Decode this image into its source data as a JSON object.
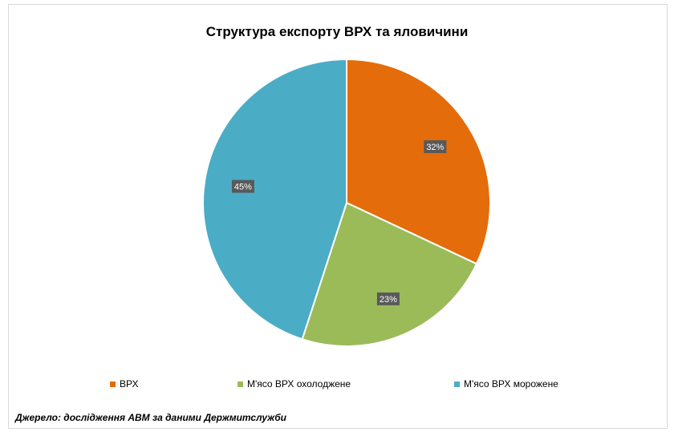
{
  "chart_data": {
    "type": "pie",
    "title": "Структура експорту ВРХ та яловичини",
    "categories": [
      "ВРХ",
      "М'ясо ВРХ охолоджене",
      "М'ясо ВРХ морожене"
    ],
    "values": [
      32,
      23,
      45
    ],
    "data_labels": [
      "32%",
      "23%",
      "45%"
    ],
    "colors": [
      "#E46C0A",
      "#9BBB59",
      "#4BACC6"
    ],
    "legend_position": "bottom"
  },
  "source_text": "Джерело: дослідження АВМ за даними Держмитслужби"
}
